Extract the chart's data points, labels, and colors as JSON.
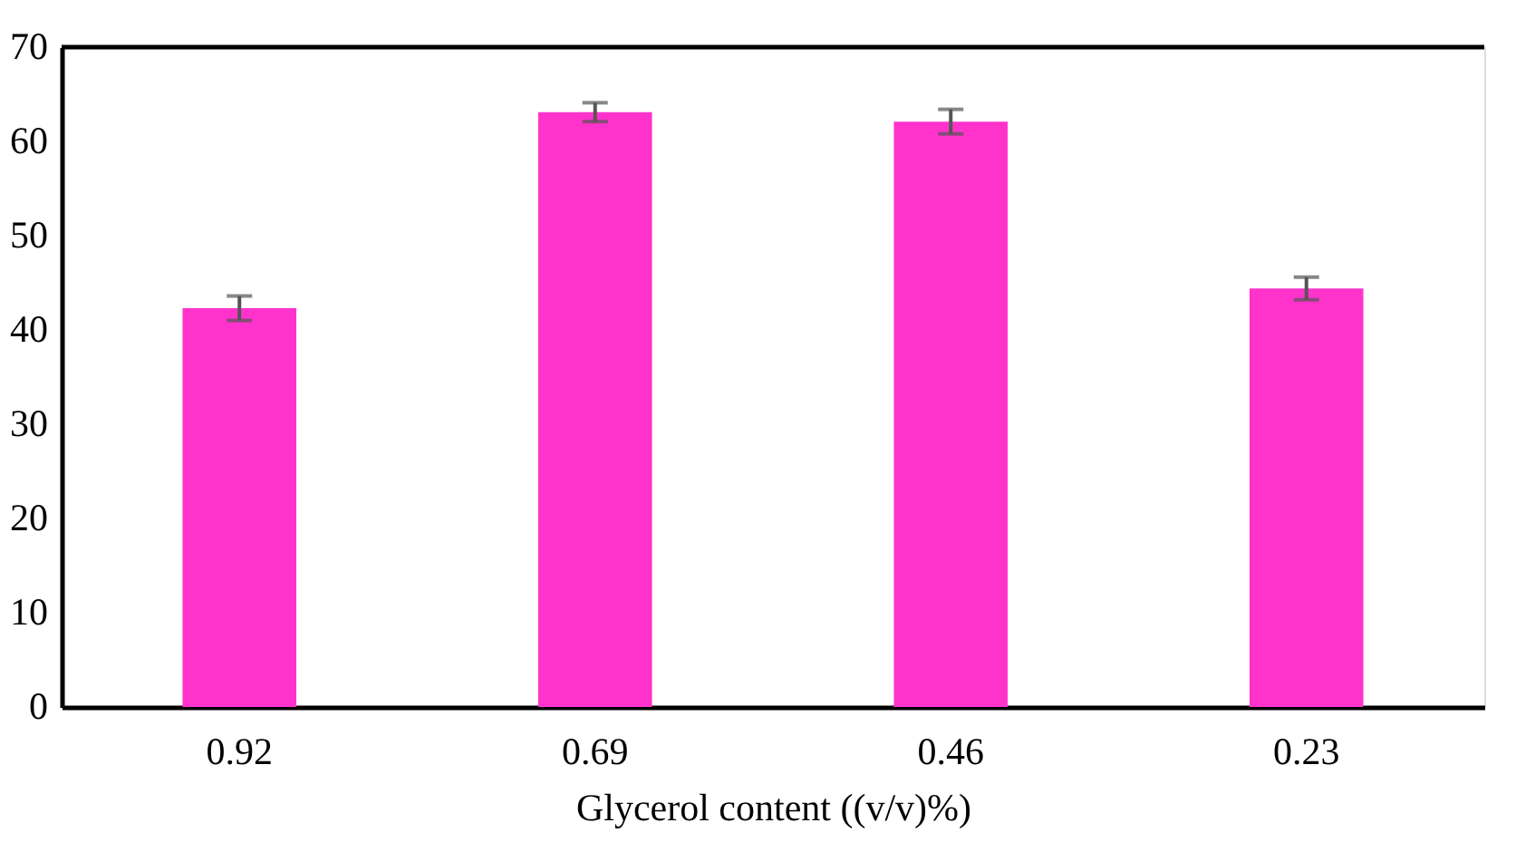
{
  "chart_data": {
    "type": "bar",
    "xlabel": "Glycerol content ((v/v)%)",
    "categories": [
      "0.92",
      "0.69",
      "0.46",
      "0.23"
    ],
    "values": [
      42.3,
      63.1,
      62.1,
      44.4
    ],
    "errors": [
      1.3,
      1.0,
      1.3,
      1.2
    ],
    "color": "#ff33cc",
    "ylim": [
      0,
      70
    ],
    "yticks": [
      0,
      10,
      20,
      30,
      40,
      50,
      60,
      70
    ],
    "grid": false
  }
}
